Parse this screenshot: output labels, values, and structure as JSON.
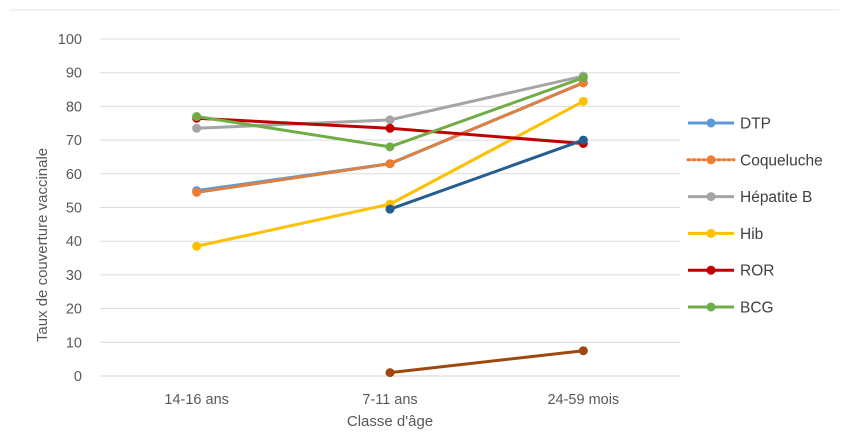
{
  "chart_data": {
    "type": "line",
    "categories": [
      "14-16 ans",
      "7-11 ans",
      "24-59 mois"
    ],
    "xlabel": "Classe d'âge",
    "ylabel": "Taux de couverture vaccinale",
    "ylim": [
      0,
      100
    ],
    "yticks": [
      "0",
      "10",
      "20",
      "30",
      "40",
      "50",
      "60",
      "70",
      "80",
      "90",
      "100"
    ],
    "grid": true,
    "legend_position": "right",
    "series": [
      {
        "name": "DTP",
        "values": [
          55,
          63,
          87
        ],
        "color": "#5B9BD5",
        "dashed": false,
        "in_legend": true
      },
      {
        "name": "Coqueluche",
        "values": [
          54.5,
          63,
          87
        ],
        "color": "#ED7D31",
        "dashed": true,
        "in_legend": true
      },
      {
        "name": "Hépatite B",
        "values": [
          73.5,
          76,
          89
        ],
        "color": "#A5A5A5",
        "dashed": false,
        "in_legend": true
      },
      {
        "name": "Hib",
        "values": [
          38.5,
          51,
          81.5
        ],
        "color": "#FFC000",
        "dashed": false,
        "in_legend": true
      },
      {
        "name": "ROR",
        "values": [
          76.5,
          73.5,
          69
        ],
        "color": "#C00000",
        "dashed": false,
        "in_legend": true
      },
      {
        "name": "BCG",
        "values": [
          77,
          68,
          88.5
        ],
        "color": "#70AD47",
        "dashed": false,
        "in_legend": true
      },
      {
        "name": "",
        "values": [
          null,
          49.5,
          70
        ],
        "color": "#255E91",
        "dashed": false,
        "in_legend": false
      },
      {
        "name": "",
        "values": [
          null,
          1,
          7.5
        ],
        "color": "#9E480E",
        "dashed": false,
        "in_legend": false
      }
    ]
  }
}
